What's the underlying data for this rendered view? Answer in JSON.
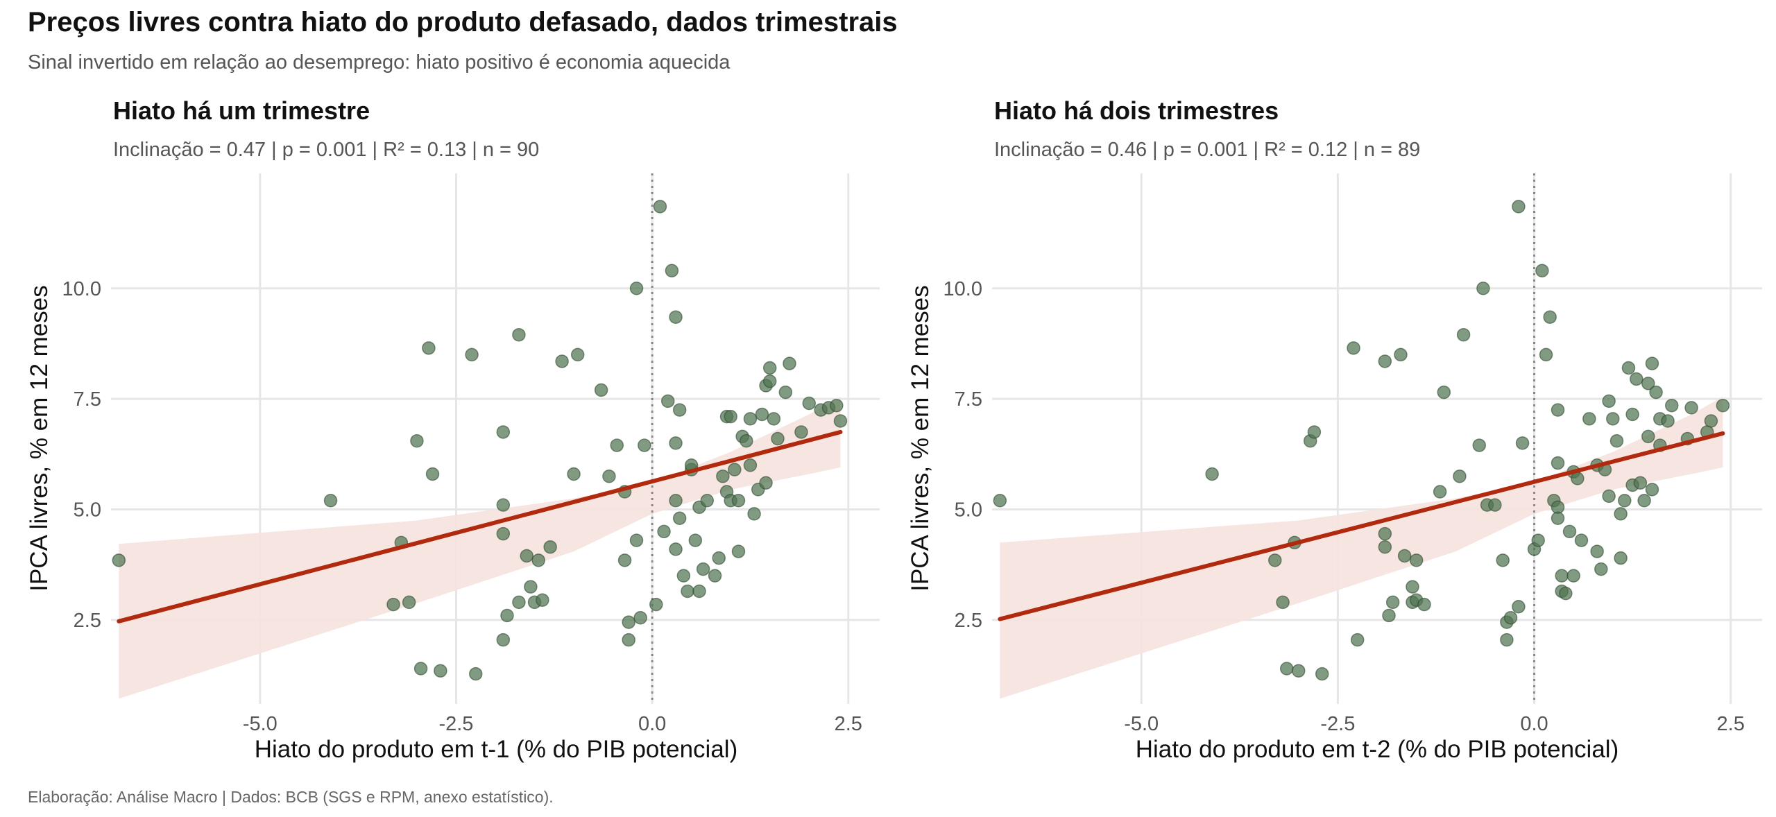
{
  "title": "Preços livres contra hiato do produto defasado, dados trimestrais",
  "subtitle": "Sinal invertido em relação ao desemprego: hiato positivo é economia aquecida",
  "caption": "Elaboração: Análise Macro | Dados: BCB (SGS e RPM, anexo estatístico).",
  "colors": {
    "points": "#4f7550",
    "line": "#b22a0e",
    "ribbon": "#f5e2de",
    "grid": "#e6e6e6",
    "zero_line": "#888888"
  },
  "chart_data": [
    {
      "type": "scatter",
      "title": "Hiato há um trimestre",
      "subtitle": "Inclinação = 0.47 | p = 0.001 | R² = 0.13 | n = 90",
      "xlabel": "Hiato do produto em t-1 (% do PIB potencial)",
      "ylabel": "IPCA livres, % em 12 meses",
      "xlim": [
        -6.9,
        2.9
      ],
      "ylim": [
        0.6,
        12.6
      ],
      "x_ticks": [
        "-5.0",
        "-2.5",
        "0.0",
        "2.5"
      ],
      "y_ticks": [
        "2.5",
        "5.0",
        "7.5",
        "10.0"
      ],
      "grid": true,
      "vertical_reference_x": 0,
      "fit": {
        "x_start": -6.8,
        "y_start": 2.47,
        "x_end": 2.4,
        "y_end": 6.75
      },
      "ribbon": {
        "x": [
          -6.8,
          -3,
          -1,
          0,
          1,
          2,
          2.4
        ],
        "lower": [
          0.72,
          2.88,
          4.05,
          4.9,
          5.45,
          5.8,
          5.95
        ],
        "upper": [
          4.22,
          4.75,
          5.25,
          5.6,
          6.3,
          7.15,
          7.55
        ]
      },
      "points": [
        [
          -6.8,
          3.85
        ],
        [
          -4.1,
          5.2
        ],
        [
          -3.3,
          2.85
        ],
        [
          -3.2,
          4.25
        ],
        [
          -3.1,
          2.9
        ],
        [
          -3.0,
          6.55
        ],
        [
          -2.95,
          1.4
        ],
        [
          -2.85,
          8.65
        ],
        [
          -2.8,
          5.8
        ],
        [
          -2.7,
          1.35
        ],
        [
          -2.3,
          8.5
        ],
        [
          -2.25,
          1.28
        ],
        [
          -1.9,
          6.75
        ],
        [
          -1.9,
          5.1
        ],
        [
          -1.9,
          4.45
        ],
        [
          -1.9,
          2.05
        ],
        [
          -1.85,
          2.6
        ],
        [
          -1.7,
          8.95
        ],
        [
          -1.7,
          2.9
        ],
        [
          -1.6,
          3.95
        ],
        [
          -1.55,
          3.25
        ],
        [
          -1.5,
          2.9
        ],
        [
          -1.45,
          3.85
        ],
        [
          -1.4,
          2.95
        ],
        [
          -1.3,
          4.15
        ],
        [
          -1.15,
          8.35
        ],
        [
          -1.0,
          5.8
        ],
        [
          -0.95,
          8.5
        ],
        [
          -0.65,
          7.7
        ],
        [
          -0.55,
          5.75
        ],
        [
          -0.45,
          6.45
        ],
        [
          -0.35,
          3.85
        ],
        [
          -0.35,
          5.4
        ],
        [
          -0.3,
          2.05
        ],
        [
          -0.3,
          2.45
        ],
        [
          -0.2,
          4.3
        ],
        [
          -0.2,
          10.0
        ],
        [
          -0.15,
          2.55
        ],
        [
          -0.1,
          6.45
        ],
        [
          0.05,
          2.85
        ],
        [
          0.1,
          11.85
        ],
        [
          0.15,
          4.5
        ],
        [
          0.2,
          7.45
        ],
        [
          0.25,
          10.4
        ],
        [
          0.3,
          6.5
        ],
        [
          0.3,
          5.2
        ],
        [
          0.3,
          4.1
        ],
        [
          0.3,
          9.35
        ],
        [
          0.35,
          7.25
        ],
        [
          0.35,
          4.8
        ],
        [
          0.4,
          3.5
        ],
        [
          0.45,
          3.15
        ],
        [
          0.5,
          5.9
        ],
        [
          0.5,
          6.0
        ],
        [
          0.55,
          4.3
        ],
        [
          0.6,
          3.15
        ],
        [
          0.6,
          5.05
        ],
        [
          0.65,
          3.65
        ],
        [
          0.7,
          5.2
        ],
        [
          0.8,
          3.5
        ],
        [
          0.85,
          3.9
        ],
        [
          0.9,
          5.75
        ],
        [
          0.95,
          5.4
        ],
        [
          0.95,
          7.1
        ],
        [
          1.0,
          7.1
        ],
        [
          1.0,
          5.2
        ],
        [
          1.05,
          5.9
        ],
        [
          1.1,
          4.05
        ],
        [
          1.1,
          5.2
        ],
        [
          1.15,
          6.65
        ],
        [
          1.2,
          6.55
        ],
        [
          1.25,
          7.05
        ],
        [
          1.25,
          6.0
        ],
        [
          1.3,
          4.9
        ],
        [
          1.35,
          5.45
        ],
        [
          1.4,
          7.15
        ],
        [
          1.45,
          5.6
        ],
        [
          1.45,
          7.8
        ],
        [
          1.5,
          8.2
        ],
        [
          1.5,
          7.9
        ],
        [
          1.55,
          7.05
        ],
        [
          1.6,
          6.6
        ],
        [
          1.7,
          7.65
        ],
        [
          1.75,
          8.3
        ],
        [
          1.9,
          6.75
        ],
        [
          2.0,
          7.4
        ],
        [
          2.15,
          7.25
        ],
        [
          2.25,
          7.3
        ],
        [
          2.35,
          7.35
        ],
        [
          2.4,
          7.0
        ]
      ]
    },
    {
      "type": "scatter",
      "title": "Hiato há dois trimestres",
      "subtitle": "Inclinação = 0.46 | p = 0.001 | R² = 0.12 | n = 89",
      "xlabel": "Hiato do produto em t-2 (% do PIB potencial)",
      "ylabel": "IPCA livres, % em 12 meses",
      "xlim": [
        -6.9,
        2.9
      ],
      "ylim": [
        0.6,
        12.6
      ],
      "x_ticks": [
        "-5.0",
        "-2.5",
        "0.0",
        "2.5"
      ],
      "y_ticks": [
        "2.5",
        "5.0",
        "7.5",
        "10.0"
      ],
      "grid": true,
      "vertical_reference_x": 0,
      "fit": {
        "x_start": -6.8,
        "y_start": 2.52,
        "x_end": 2.4,
        "y_end": 6.72
      },
      "ribbon": {
        "x": [
          -6.8,
          -3,
          -1,
          0,
          1,
          2,
          2.4
        ],
        "lower": [
          0.72,
          2.88,
          4.05,
          4.9,
          5.45,
          5.8,
          5.95
        ],
        "upper": [
          4.25,
          4.75,
          5.25,
          5.62,
          6.3,
          7.15,
          7.55
        ]
      },
      "points": [
        [
          -6.8,
          5.2
        ],
        [
          -4.1,
          5.8
        ],
        [
          -3.3,
          3.85
        ],
        [
          -3.2,
          2.9
        ],
        [
          -3.15,
          1.4
        ],
        [
          -3.05,
          4.25
        ],
        [
          -3.0,
          1.35
        ],
        [
          -2.85,
          6.55
        ],
        [
          -2.8,
          6.75
        ],
        [
          -2.7,
          1.28
        ],
        [
          -2.3,
          8.65
        ],
        [
          -2.25,
          2.05
        ],
        [
          -1.9,
          8.35
        ],
        [
          -1.9,
          4.45
        ],
        [
          -1.9,
          4.15
        ],
        [
          -1.85,
          2.6
        ],
        [
          -1.8,
          2.9
        ],
        [
          -1.7,
          8.5
        ],
        [
          -1.65,
          3.95
        ],
        [
          -1.55,
          3.25
        ],
        [
          -1.55,
          2.9
        ],
        [
          -1.5,
          3.85
        ],
        [
          -1.5,
          2.95
        ],
        [
          -1.4,
          2.85
        ],
        [
          -1.2,
          5.4
        ],
        [
          -1.15,
          7.65
        ],
        [
          -0.95,
          5.75
        ],
        [
          -0.9,
          8.95
        ],
        [
          -0.7,
          6.45
        ],
        [
          -0.65,
          10.0
        ],
        [
          -0.6,
          5.1
        ],
        [
          -0.5,
          5.1
        ],
        [
          -0.4,
          3.85
        ],
        [
          -0.35,
          2.05
        ],
        [
          -0.35,
          2.45
        ],
        [
          -0.3,
          2.55
        ],
        [
          -0.2,
          11.85
        ],
        [
          -0.2,
          2.8
        ],
        [
          -0.15,
          6.5
        ],
        [
          0.0,
          4.1
        ],
        [
          0.05,
          4.3
        ],
        [
          0.1,
          10.4
        ],
        [
          0.15,
          8.5
        ],
        [
          0.2,
          9.35
        ],
        [
          0.25,
          5.2
        ],
        [
          0.3,
          7.25
        ],
        [
          0.3,
          6.05
        ],
        [
          0.3,
          5.05
        ],
        [
          0.3,
          4.8
        ],
        [
          0.35,
          3.5
        ],
        [
          0.35,
          3.15
        ],
        [
          0.4,
          3.1
        ],
        [
          0.45,
          4.5
        ],
        [
          0.5,
          5.85
        ],
        [
          0.5,
          3.5
        ],
        [
          0.55,
          5.7
        ],
        [
          0.6,
          4.3
        ],
        [
          0.7,
          7.05
        ],
        [
          0.8,
          6.0
        ],
        [
          0.8,
          4.05
        ],
        [
          0.85,
          3.65
        ],
        [
          0.9,
          5.9
        ],
        [
          0.95,
          5.3
        ],
        [
          0.95,
          7.45
        ],
        [
          1.0,
          7.05
        ],
        [
          1.05,
          6.55
        ],
        [
          1.1,
          3.9
        ],
        [
          1.1,
          4.9
        ],
        [
          1.15,
          5.2
        ],
        [
          1.2,
          8.2
        ],
        [
          1.25,
          5.55
        ],
        [
          1.25,
          7.15
        ],
        [
          1.3,
          7.95
        ],
        [
          1.35,
          5.6
        ],
        [
          1.4,
          5.2
        ],
        [
          1.45,
          6.65
        ],
        [
          1.45,
          7.85
        ],
        [
          1.5,
          8.3
        ],
        [
          1.5,
          5.45
        ],
        [
          1.55,
          7.65
        ],
        [
          1.6,
          6.45
        ],
        [
          1.6,
          7.05
        ],
        [
          1.7,
          7.0
        ],
        [
          1.75,
          7.35
        ],
        [
          1.95,
          6.6
        ],
        [
          2.0,
          7.3
        ],
        [
          2.2,
          6.75
        ],
        [
          2.25,
          7.0
        ],
        [
          2.4,
          7.35
        ]
      ]
    }
  ]
}
